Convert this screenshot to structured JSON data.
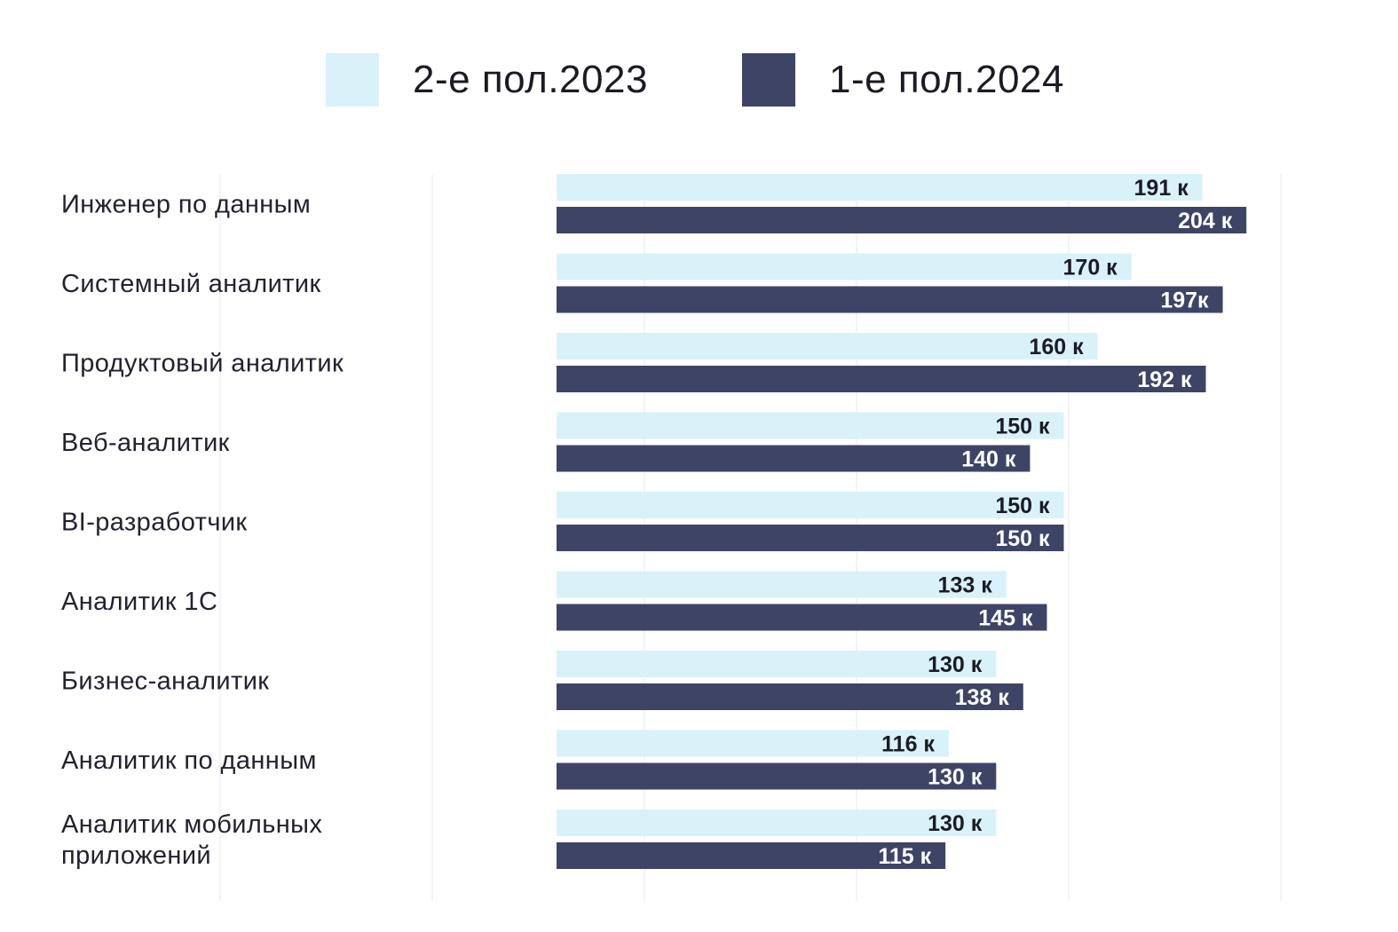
{
  "legend": {
    "items": [
      {
        "label": "2-е пол.2023",
        "color": "#d9f1f9"
      },
      {
        "label": "1-е пол.2024",
        "color": "#3d4466"
      }
    ]
  },
  "chart_data": {
    "type": "bar",
    "orientation": "horizontal",
    "categories": [
      "Инженер по данным",
      "Системный аналитик",
      "Продуктовый аналитик",
      "Веб-аналитик",
      "BI-разработчик",
      "Аналитик 1С",
      "Бизнес-аналитик",
      "Аналитик по данным",
      "Аналитик мобильных приложений"
    ],
    "category_lines": [
      [
        "Инженер по данным"
      ],
      [
        "Системный аналитик"
      ],
      [
        "Продуктовый аналитик"
      ],
      [
        "Веб-аналитик"
      ],
      [
        "BI-разработчик"
      ],
      [
        "Аналитик 1С"
      ],
      [
        "Бизнес-аналитик"
      ],
      [
        "Аналитик по данным"
      ],
      [
        "Аналитик мобильных",
        "приложений"
      ]
    ],
    "series": [
      {
        "name": "2-е пол.2023",
        "color": "#d9f1f9",
        "label_color": "#1b1b26",
        "values": [
          191,
          170,
          160,
          150,
          150,
          133,
          130,
          116,
          130
        ],
        "labels": [
          "191 к",
          "170 к",
          "160 к",
          "150 к",
          "150 к",
          "133 к",
          "130 к",
          "116 к",
          "130 к"
        ]
      },
      {
        "name": "1-е пол.2024",
        "color": "#3d4466",
        "label_color": "#ffffff",
        "values": [
          204,
          197,
          192,
          140,
          150,
          145,
          138,
          130,
          115
        ],
        "labels": [
          "204 к",
          "197к",
          "192 к",
          "140 к",
          "150 к",
          "145 к",
          "138 к",
          "130 к",
          "115 к"
        ]
      }
    ],
    "grid": true,
    "legend_position": "top-center"
  }
}
